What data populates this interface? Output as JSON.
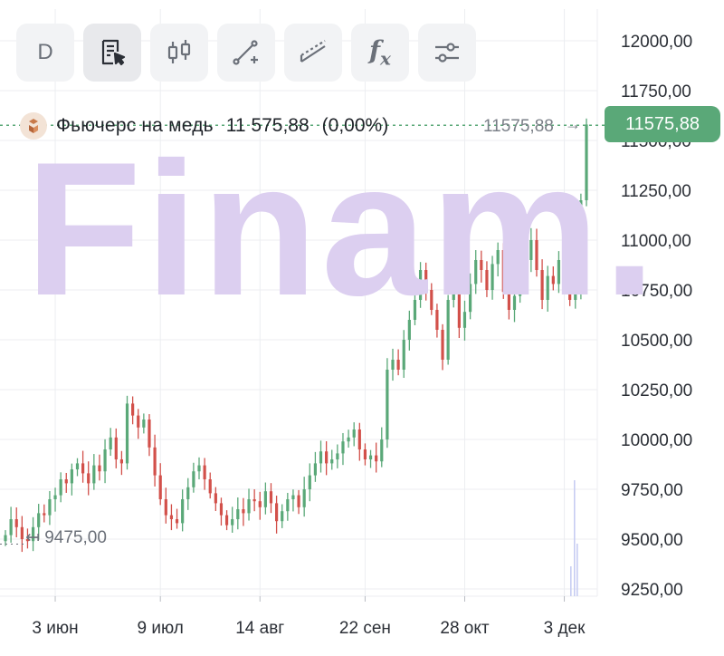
{
  "toolbar": {
    "interval_label": "D",
    "buttons": [
      {
        "icon": "note-cursor-icon"
      },
      {
        "icon": "candles-icon"
      },
      {
        "icon": "trend-line-icon"
      },
      {
        "icon": "channel-icon"
      },
      {
        "icon": "fx-icon",
        "label": "f"
      },
      {
        "icon": "settings-sliders-icon"
      }
    ],
    "fx_sub": "x"
  },
  "legend": {
    "instrument": "Фьючерс на медь",
    "price": "11 575,88",
    "change": "(0,00%)"
  },
  "price_tag": {
    "value": "11575,88",
    "color": "#5aa878"
  },
  "price_line_label": "11575,88",
  "min_marker": "9475,00",
  "watermark": "Finam.",
  "colors": {
    "up": "#5aa878",
    "down": "#d2504a",
    "grid": "#eceef1",
    "watermark": "#dccff0"
  },
  "chart_data": {
    "type": "candlestick",
    "x_ticks": [
      "3 июн",
      "9 июл",
      "14 авг",
      "22 сен",
      "28 окт",
      "3 дек"
    ],
    "y_ticks": [
      "12000,00",
      "11750,00",
      "11500,00",
      "11250,00",
      "11000,00",
      "10750,00",
      "10500,00",
      "10250,00",
      "10000,00",
      "9750,00",
      "9500,00",
      "9250,00"
    ],
    "ylim": [
      9200,
      12050
    ],
    "last_price": 11575.88,
    "closes": [
      9520,
      9600,
      9560,
      9500,
      9490,
      9560,
      9630,
      9620,
      9700,
      9720,
      9800,
      9780,
      9850,
      9880,
      9830,
      9780,
      9870,
      9840,
      9950,
      10010,
      9900,
      9880,
      10180,
      10120,
      10060,
      10100,
      9960,
      9820,
      9700,
      9620,
      9600,
      9580,
      9700,
      9760,
      9840,
      9870,
      9800,
      9730,
      9680,
      9620,
      9570,
      9600,
      9650,
      9630,
      9700,
      9690,
      9660,
      9740,
      9680,
      9590,
      9640,
      9700,
      9720,
      9660,
      9750,
      9820,
      9880,
      9940,
      9880,
      9900,
      9930,
      9990,
      10010,
      10050,
      9950,
      9900,
      9920,
      9890,
      10000,
      10350,
      10400,
      10350,
      10500,
      10600,
      10700,
      10850,
      10750,
      10650,
      10550,
      10400,
      10700,
      10820,
      10560,
      10640,
      10780,
      10900,
      10850,
      10750,
      10880,
      10950,
      10740,
      10650,
      10720,
      10800,
      10900,
      11000,
      10850,
      10700,
      10820,
      10780,
      10900,
      10820,
      10700,
      10760,
      11200,
      11580
    ]
  }
}
